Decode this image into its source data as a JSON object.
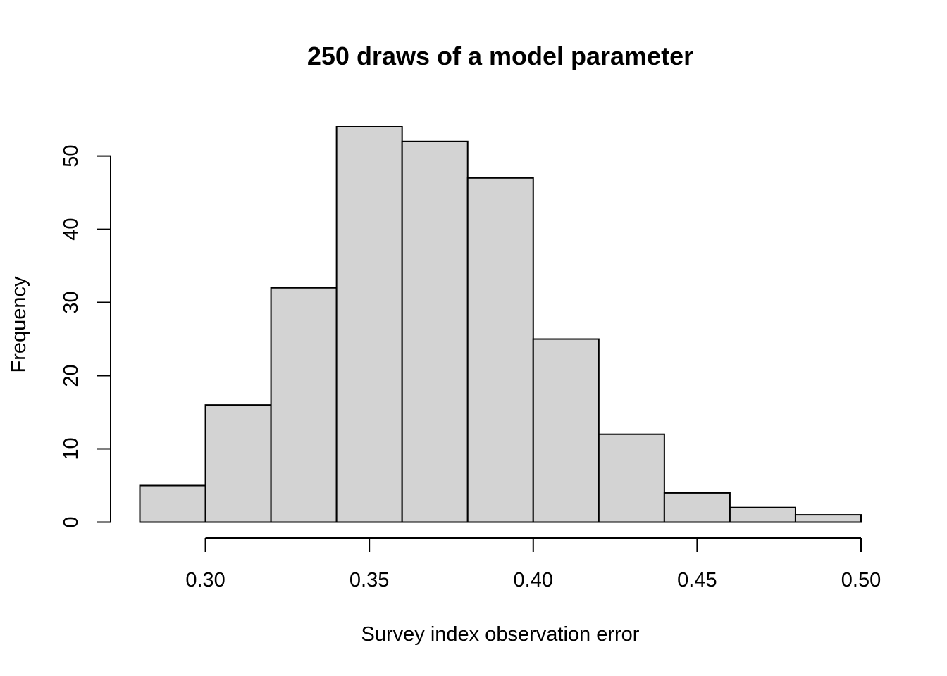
{
  "chart_data": {
    "type": "bar",
    "title": "250 draws of a model parameter",
    "xlabel": "Survey index observation error",
    "ylabel": "Frequency",
    "bins": [
      {
        "x0": 0.28,
        "x1": 0.3,
        "count": 5
      },
      {
        "x0": 0.3,
        "x1": 0.32,
        "count": 16
      },
      {
        "x0": 0.32,
        "x1": 0.34,
        "count": 32
      },
      {
        "x0": 0.34,
        "x1": 0.36,
        "count": 54
      },
      {
        "x0": 0.36,
        "x1": 0.38,
        "count": 52
      },
      {
        "x0": 0.38,
        "x1": 0.4,
        "count": 47
      },
      {
        "x0": 0.4,
        "x1": 0.42,
        "count": 25
      },
      {
        "x0": 0.42,
        "x1": 0.44,
        "count": 12
      },
      {
        "x0": 0.44,
        "x1": 0.46,
        "count": 4
      },
      {
        "x0": 0.46,
        "x1": 0.48,
        "count": 2
      },
      {
        "x0": 0.48,
        "x1": 0.5,
        "count": 1
      }
    ],
    "xlim": [
      0.28,
      0.5
    ],
    "ylim": [
      0,
      54
    ],
    "x_ticks": [
      "0.30",
      "0.35",
      "0.40",
      "0.45",
      "0.50"
    ],
    "y_ticks": [
      "0",
      "10",
      "20",
      "30",
      "40",
      "50"
    ],
    "colors": {
      "bar_fill": "#d3d3d3",
      "bar_stroke": "#000000"
    },
    "grid": false,
    "legend": "none"
  }
}
